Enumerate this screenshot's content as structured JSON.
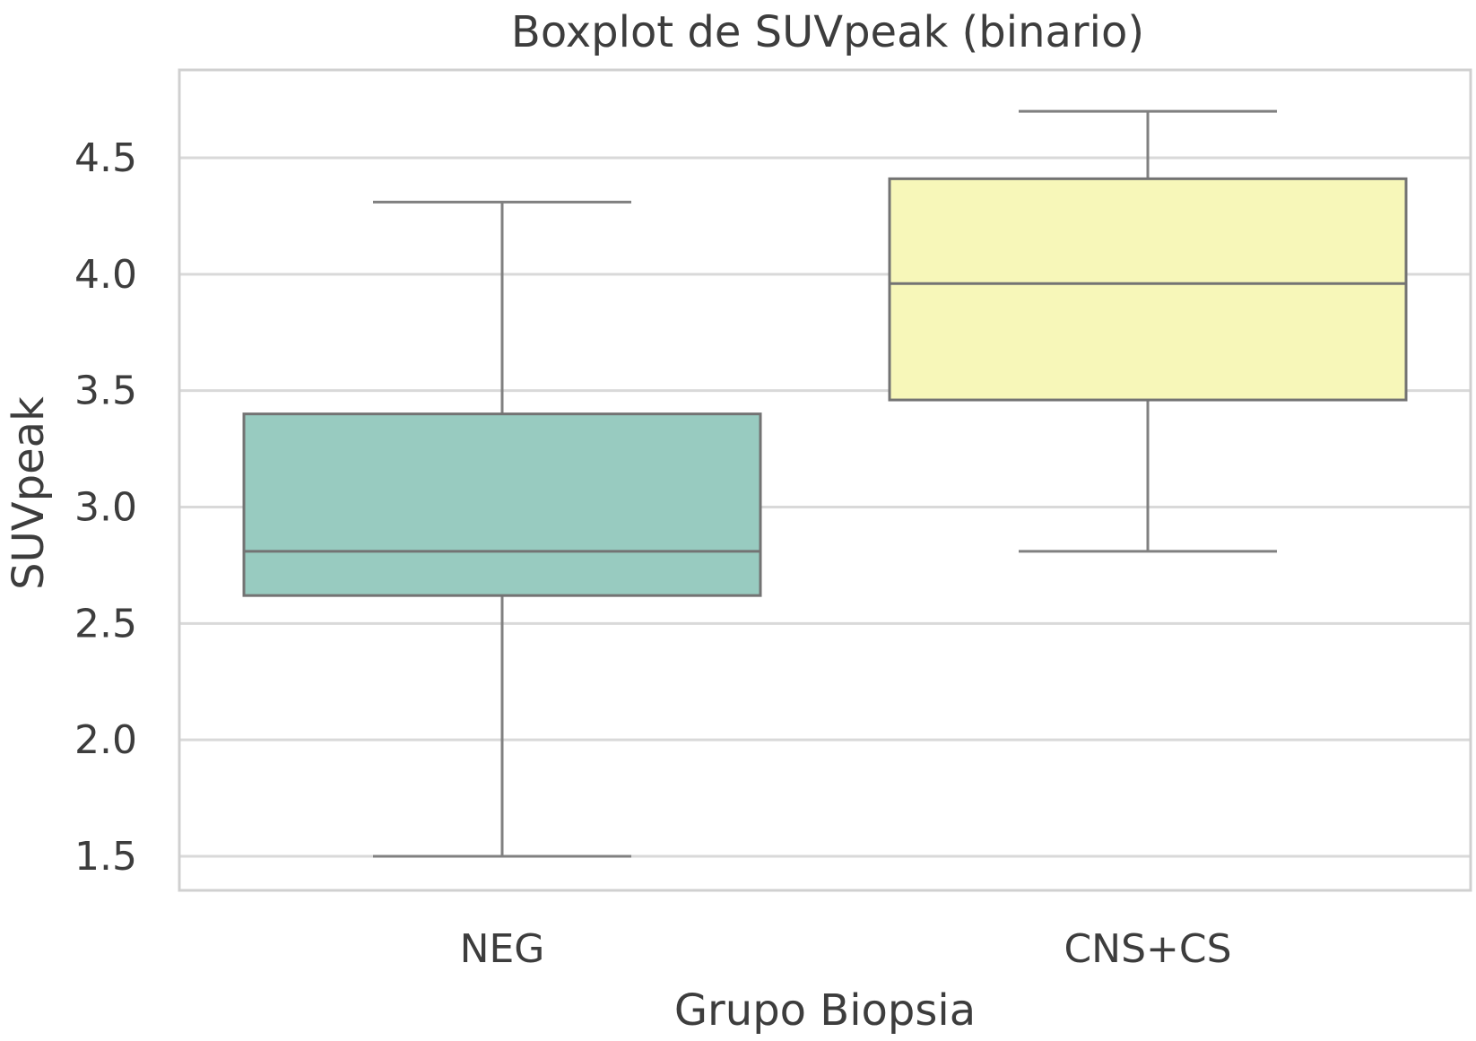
{
  "chart_data": {
    "type": "boxplot",
    "title": "Boxplot de SUVpeak (binario)",
    "xlabel": "Grupo Biopsia",
    "ylabel": "SUVpeak",
    "ylim": [
      1.35,
      4.85
    ],
    "yticks": [
      1.5,
      2.0,
      2.5,
      3.0,
      3.5,
      4.0,
      4.5
    ],
    "ytick_labels": [
      "1.5",
      "2.0",
      "2.5",
      "3.0",
      "3.5",
      "4.0",
      "4.5"
    ],
    "grid": true,
    "categories": [
      "NEG",
      "CNS+CS"
    ],
    "boxes": [
      {
        "category": "NEG",
        "min": 1.5,
        "q1": 2.62,
        "median": 2.81,
        "q3": 3.4,
        "max": 4.31,
        "color": "#98cbc0"
      },
      {
        "category": "CNS+CS",
        "min": 2.81,
        "q1": 3.46,
        "median": 3.96,
        "q3": 4.41,
        "max": 4.7,
        "color": "#f7f7b9"
      }
    ]
  }
}
